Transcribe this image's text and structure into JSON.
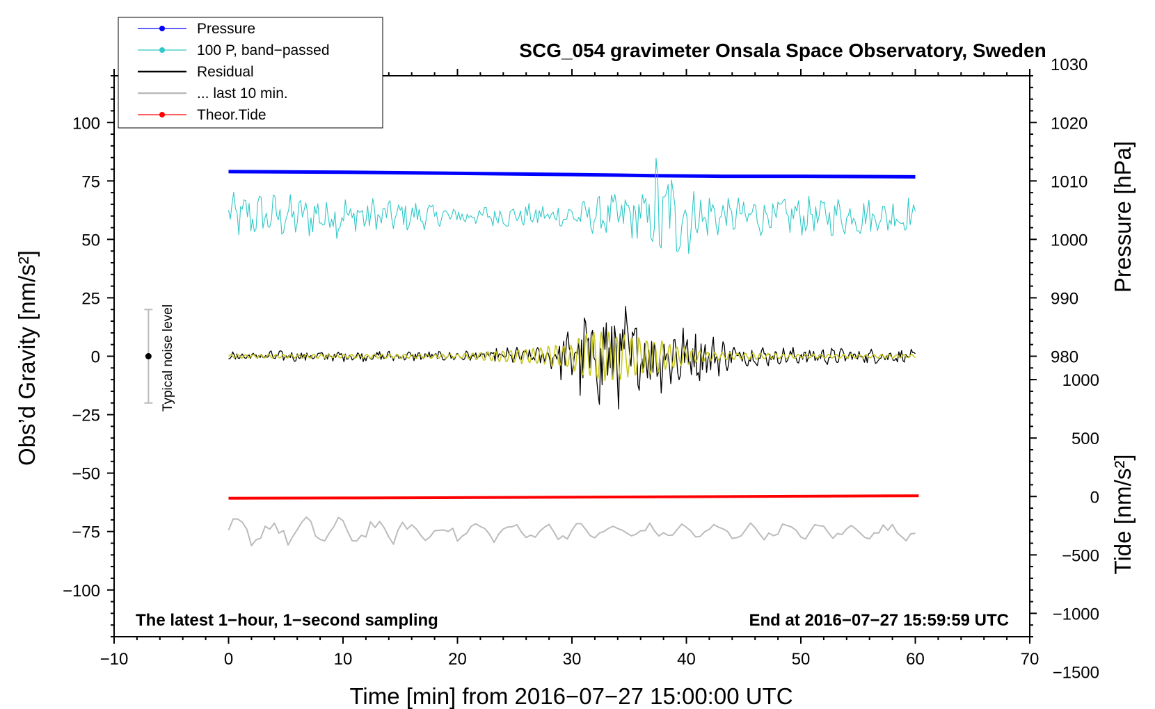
{
  "chart_data": {
    "type": "line",
    "title": "SCG_054 gravimeter Onsala Space Observatory, Sweden",
    "xlabel": "Time [min] from 2016−07−27 15:00:00 UTC",
    "ylabel_left": "Obs’d Gravity [nm/s²]",
    "ylabel_right_top": "Pressure [hPa]",
    "ylabel_right_bottom": "Tide [nm/s²]",
    "xlim": [
      -10,
      70
    ],
    "ylim_left": [
      -120,
      120
    ],
    "x_ticks": [
      -10,
      0,
      10,
      20,
      30,
      40,
      50,
      60,
      70
    ],
    "x_tick_labels": [
      "−10",
      "0",
      "10",
      "20",
      "30",
      "40",
      "50",
      "60",
      "70"
    ],
    "y_ticks_left": [
      100,
      75,
      50,
      25,
      0,
      -25,
      -50,
      -75,
      -100
    ],
    "y_tick_labels_left": [
      "100",
      "75",
      "50",
      "25",
      "0",
      "−25",
      "−50",
      "−75",
      "−100"
    ],
    "pressure_axis": {
      "ticks": [
        1030,
        1020,
        1010,
        1000,
        990,
        980
      ],
      "tick_labels": [
        "1030",
        "1020",
        "1010",
        "1000",
        "990",
        "980"
      ],
      "left_equiv_at_1000": 50,
      "left_units_per_hPa": 2.5
    },
    "tide_axis": {
      "ticks": [
        1000,
        500,
        0,
        -500,
        -1000,
        -1500
      ],
      "tick_labels": [
        "1000",
        "500",
        "0",
        "−500",
        "−1000",
        "−1500"
      ],
      "left_equiv_at_0": -60,
      "left_units_per_nms2": 0.05
    },
    "series": [
      {
        "name": "Pressure",
        "color": "#0000ff",
        "axis": "pressure",
        "x": [
          0,
          10,
          20,
          30,
          37,
          43,
          50,
          60
        ],
        "y": [
          1011.6,
          1011.5,
          1011.3,
          1011.1,
          1010.9,
          1010.8,
          1010.8,
          1010.7
        ]
      },
      {
        "name": "100 P, band−passed",
        "color": "#30c8c8",
        "axis": "left",
        "x_range": [
          0,
          60
        ],
        "baseline": 60,
        "amplitude_envelope": {
          "x": [
            0,
            10,
            20,
            30,
            36.8,
            37.2,
            43,
            50,
            60
          ],
          "amp": [
            11,
            10,
            5,
            6,
            14,
            30,
            9,
            9,
            9
          ]
        }
      },
      {
        "name": "Residual",
        "color": "#000000",
        "axis": "left",
        "x_range": [
          0,
          60
        ],
        "baseline": 0,
        "amplitude_envelope": {
          "x": [
            0,
            20,
            28,
            31,
            33,
            34.5,
            36,
            38,
            41,
            45,
            50,
            60
          ],
          "amp": [
            2.5,
            2.5,
            5,
            22,
            30,
            26,
            14,
            20,
            12,
            5,
            4,
            3
          ]
        }
      },
      {
        "name": "... last 10 min.",
        "color": "#bbbbbb",
        "axis": "left",
        "x_range": [
          0,
          60
        ],
        "baseline": -75,
        "amplitude_envelope": {
          "x": [
            0,
            15,
            30,
            45,
            60
          ],
          "amp": [
            7,
            6,
            4,
            4,
            4
          ]
        }
      },
      {
        "name": "Theor.Tide",
        "color": "#ff0000",
        "axis": "tide",
        "x": [
          0,
          10,
          20,
          30,
          40,
          50,
          60.3
        ],
        "y": [
          -15,
          -13,
          -10,
          -6,
          -2,
          2,
          6
        ]
      },
      {
        "name": "",
        "color": "#c8c820",
        "axis": "left",
        "x_range": [
          0,
          60
        ],
        "baseline": 0,
        "amplitude_envelope": {
          "x": [
            0,
            20,
            27,
            30,
            31.5,
            33,
            35,
            37,
            39,
            42,
            50,
            60
          ],
          "amp": [
            0.8,
            1,
            4,
            6,
            12,
            12,
            10,
            8,
            5,
            2,
            1,
            0.8
          ]
        }
      }
    ],
    "noise_bar": {
      "label": "Typical noise level",
      "x": -7,
      "y_center": 0,
      "y_low": -20,
      "y_high": 20
    },
    "annotations": {
      "bottom_left": "The latest 1−hour, 1−second sampling",
      "bottom_right": "End at 2016−07−27 15:59:59 UTC"
    },
    "legend": {
      "position": "top-left",
      "entries": [
        {
          "label": "Pressure",
          "color": "#0000ff",
          "marker": true
        },
        {
          "label": "100 P, band−passed",
          "color": "#30c8c8",
          "marker": true
        },
        {
          "label": "Residual",
          "color": "#000000",
          "marker": false
        },
        {
          "label": "... last 10 min.",
          "color": "#bbbbbb",
          "marker": false
        },
        {
          "label": "Theor.Tide",
          "color": "#ff0000",
          "marker": true
        }
      ]
    },
    "grid": false
  }
}
